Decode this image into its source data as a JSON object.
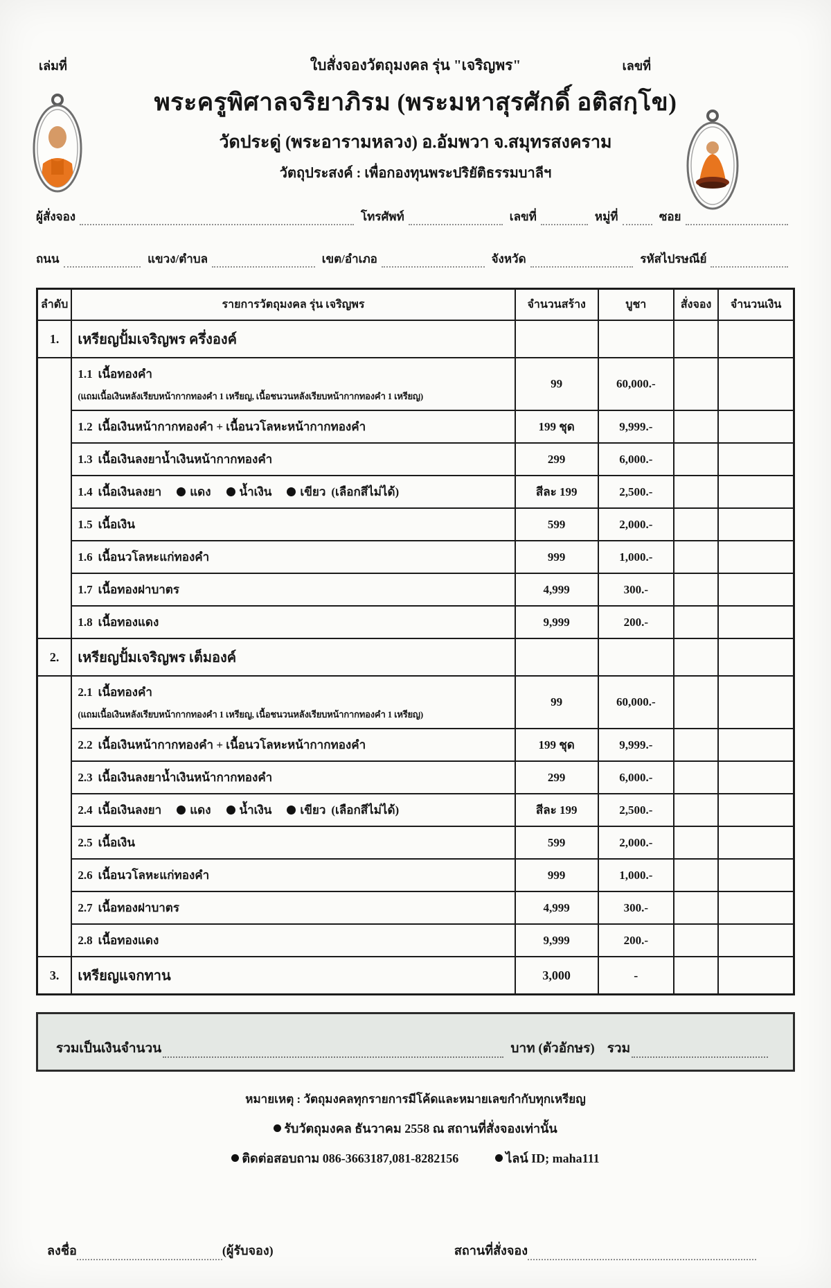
{
  "header": {
    "book_no_label": "เล่มที่",
    "form_title": "ใบสั่งจองวัตถุมงคล รุ่น \"เจริญพร\"",
    "doc_no_label": "เลขที่",
    "monk_title": "พระครูพิศาลจริยาภิรม (พระมหาสุรศักดิ์  อติสกฺโข)",
    "temple_line": "วัดประดู่ (พระอารามหลวง) อ.อัมพวา จ.สมุทรสงคราม",
    "purpose_line": "วัตถุประสงค์ : เพื่อกองทุนพระปริยัติธรรมบาลีฯ"
  },
  "orderer_fields": {
    "line1": [
      "ผู้สั่งจอง",
      "โทรศัพท์",
      "เลขที่",
      "หมู่ที่",
      "ซอย"
    ],
    "line2": [
      "ถนน",
      "แขวง/ตำบล",
      "เขต/อำเภอ",
      "จังหวัด",
      "รหัสไปรษณีย์"
    ]
  },
  "table": {
    "headers": [
      "ลำดับ",
      "รายการวัตถุมงคล รุ่น เจริญพร",
      "จำนวนสร้าง",
      "บูชา",
      "สั่งจอง",
      "จำนวนเงิน"
    ],
    "rows": [
      {
        "type": "section",
        "no": "1.",
        "name": "เหรียญปั้มเจริญพร ครึ่งองค์"
      },
      {
        "type": "item",
        "no": "1.1",
        "name": "เนื้อทองคำ",
        "qty": "99",
        "price": "60,000.-",
        "note": "(แถมเนื้อเงินหลังเรียบหน้ากากทองคำ 1 เหรียญ, เนื้อชนวนหลังเรียบหน้ากากทองคำ 1 เหรียญ)"
      },
      {
        "type": "item",
        "no": "1.2",
        "name": "เนื้อเงินหน้ากากทองคำ + เนื้อนวโลหะหน้ากากทองคำ",
        "qty": "199 ชุด",
        "price": "9,999.-"
      },
      {
        "type": "item",
        "no": "1.3",
        "name": "เนื้อเงินลงยาน้ำเงินหน้ากากทองคำ",
        "qty": "299",
        "price": "6,000.-"
      },
      {
        "type": "item",
        "no": "1.4",
        "name": "เนื้อเงินลงยา",
        "colors": [
          "แดง",
          "น้ำเงิน",
          "เขียว"
        ],
        "name_suffix": "(เลือกสีไม่ได้)",
        "qty": "สีละ 199",
        "price": "2,500.-"
      },
      {
        "type": "item",
        "no": "1.5",
        "name": "เนื้อเงิน",
        "qty": "599",
        "price": "2,000.-"
      },
      {
        "type": "item",
        "no": "1.6",
        "name": "เนื้อนวโลหะแก่ทองคำ",
        "qty": "999",
        "price": "1,000.-"
      },
      {
        "type": "item",
        "no": "1.7",
        "name": "เนื้อทองฝาบาตร",
        "qty": "4,999",
        "price": "300.-"
      },
      {
        "type": "item",
        "no": "1.8",
        "name": "เนื้อทองแดง",
        "qty": "9,999",
        "price": "200.-"
      },
      {
        "type": "section",
        "no": "2.",
        "name": "เหรียญปั้มเจริญพร เต็มองค์"
      },
      {
        "type": "item",
        "no": "2.1",
        "name": "เนื้อทองคำ",
        "qty": "99",
        "price": "60,000.-",
        "note": "(แถมเนื้อเงินหลังเรียบหน้ากากทองคำ 1 เหรียญ, เนื้อชนวนหลังเรียบหน้ากากทองคำ 1 เหรียญ)"
      },
      {
        "type": "item",
        "no": "2.2",
        "name": "เนื้อเงินหน้ากากทองคำ + เนื้อนวโลหะหน้ากากทองคำ",
        "qty": "199 ชุด",
        "price": "9,999.-"
      },
      {
        "type": "item",
        "no": "2.3",
        "name": "เนื้อเงินลงยาน้ำเงินหน้ากากทองคำ",
        "qty": "299",
        "price": "6,000.-"
      },
      {
        "type": "item",
        "no": "2.4",
        "name": "เนื้อเงินลงยา",
        "colors": [
          "แดง",
          "น้ำเงิน",
          "เขียว"
        ],
        "name_suffix": "(เลือกสีไม่ได้)",
        "qty": "สีละ 199",
        "price": "2,500.-"
      },
      {
        "type": "item",
        "no": "2.5",
        "name": "เนื้อเงิน",
        "qty": "599",
        "price": "2,000.-"
      },
      {
        "type": "item",
        "no": "2.6",
        "name": "เนื้อนวโลหะแก่ทองคำ",
        "qty": "999",
        "price": "1,000.-"
      },
      {
        "type": "item",
        "no": "2.7",
        "name": "เนื้อทองฝาบาตร",
        "qty": "4,999",
        "price": "300.-"
      },
      {
        "type": "item",
        "no": "2.8",
        "name": "เนื้อทองแดง",
        "qty": "9,999",
        "price": "200.-"
      },
      {
        "type": "section",
        "no": "3.",
        "name": "เหรียญแจกทาน",
        "qty": "3,000",
        "price": "-"
      }
    ]
  },
  "summary": {
    "total_label": "รวมเป็นเงินจำนวน",
    "baht_label": "บาท (ตัวอักษร)",
    "sum_label": "รวม"
  },
  "notes": {
    "remark": "หมายเหตุ : วัตถุมงคลทุกรายการมีโค้ดและหมายเลขกำกับทุกเหรียญ",
    "bullet1": "รับวัตถุมงคล ธันวาคม 2558 ณ สถานที่สั่งจองเท่านั้น",
    "bullet2": "ติดต่อสอบถาม 086-3663187,081-8282156",
    "bullet3": "ไลน์ ID; maha111"
  },
  "signature": {
    "sign_label": "ลงชื่อ",
    "receiver_label": "(ผู้รับจอง)",
    "place_label": "สถานที่สั่งจอง"
  },
  "colors": {
    "robe_orange": "#e8751e",
    "skin_tone": "#d69a66",
    "summary_bg": "#e4e8e4",
    "line_black": "#1b1b1b"
  }
}
